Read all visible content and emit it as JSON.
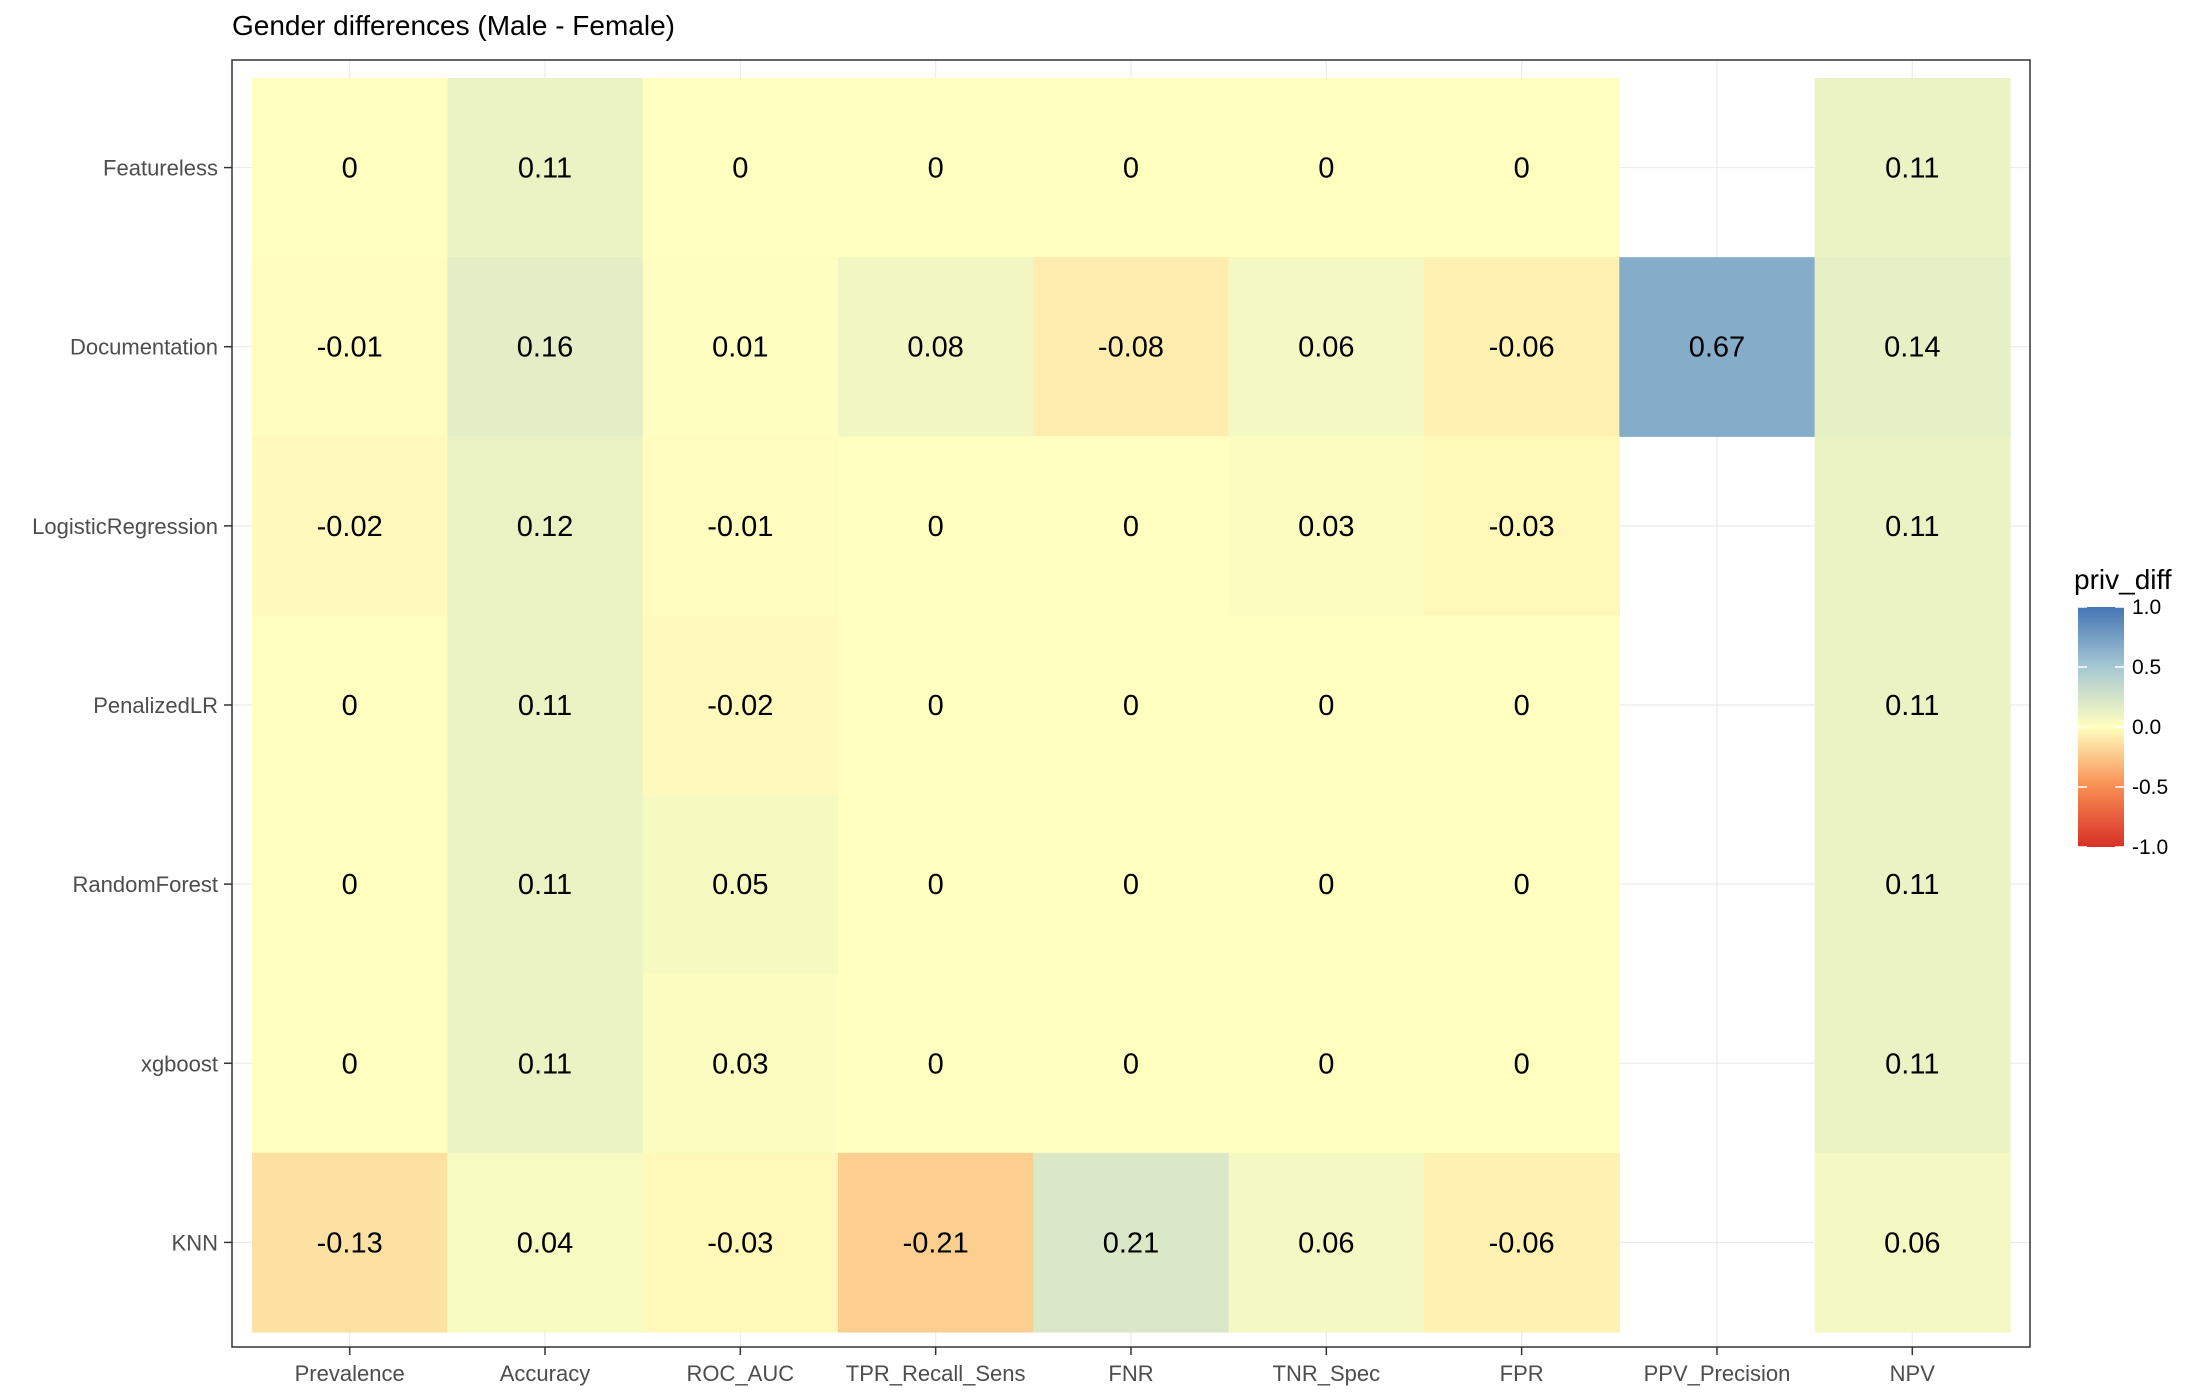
{
  "chart_data": {
    "type": "heatmap",
    "title": "Gender differences (Male - Female)",
    "xlabel": "",
    "ylabel": "",
    "x_categories": [
      "Prevalence",
      "Accuracy",
      "ROC_AUC",
      "TPR_Recall_Sens",
      "FNR",
      "TNR_Spec",
      "FPR",
      "PPV_Precision",
      "NPV"
    ],
    "y_categories": [
      "Featureless",
      "Documentation",
      "LogisticRegression",
      "PenalizedLR",
      "RandomForest",
      "xgboost",
      "KNN"
    ],
    "values": [
      [
        0,
        0.11,
        0,
        0,
        0,
        0,
        0,
        null,
        0.11
      ],
      [
        -0.01,
        0.16,
        0.01,
        0.08,
        -0.08,
        0.06,
        -0.06,
        0.67,
        0.14
      ],
      [
        -0.02,
        0.12,
        -0.01,
        0,
        0,
        0.03,
        -0.03,
        null,
        0.11
      ],
      [
        0,
        0.11,
        -0.02,
        0,
        0,
        0,
        0,
        null,
        0.11
      ],
      [
        0,
        0.11,
        0.05,
        0,
        0,
        0,
        0,
        null,
        0.11
      ],
      [
        0,
        0.11,
        0.03,
        0,
        0,
        0,
        0,
        null,
        0.11
      ],
      [
        -0.13,
        0.04,
        -0.03,
        -0.21,
        0.21,
        0.06,
        -0.06,
        null,
        0.06
      ]
    ],
    "labels": [
      [
        "0",
        "0.11",
        "0",
        "0",
        "0",
        "0",
        "0",
        "",
        "0.11"
      ],
      [
        "-0.01",
        "0.16",
        "0.01",
        "0.08",
        "-0.08",
        "0.06",
        "-0.06",
        "0.67",
        "0.14"
      ],
      [
        "-0.02",
        "0.12",
        "-0.01",
        "0",
        "0",
        "0.03",
        "-0.03",
        "",
        "0.11"
      ],
      [
        "0",
        "0.11",
        "-0.02",
        "0",
        "0",
        "0",
        "0",
        "",
        "0.11"
      ],
      [
        "0",
        "0.11",
        "0.05",
        "0",
        "0",
        "0",
        "0",
        "",
        "0.11"
      ],
      [
        "0",
        "0.11",
        "0.03",
        "0",
        "0",
        "0",
        "0",
        "",
        "0.11"
      ],
      [
        "-0.13",
        "0.04",
        "-0.03",
        "-0.21",
        "0.21",
        "0.06",
        "-0.06",
        "",
        "0.06"
      ]
    ],
    "legend": {
      "title": "priv_diff",
      "position": "right",
      "range": [
        -1,
        1
      ],
      "ticks": [
        "1.0",
        "0.5",
        "0.0",
        "-0.5",
        "-1.0"
      ],
      "colors": {
        "low": "#d73027",
        "mid_low": "#fdae61",
        "mid": "#ffffbf",
        "mid_high": "#abd9e9",
        "high": "#4575b4"
      }
    },
    "grid": true
  }
}
